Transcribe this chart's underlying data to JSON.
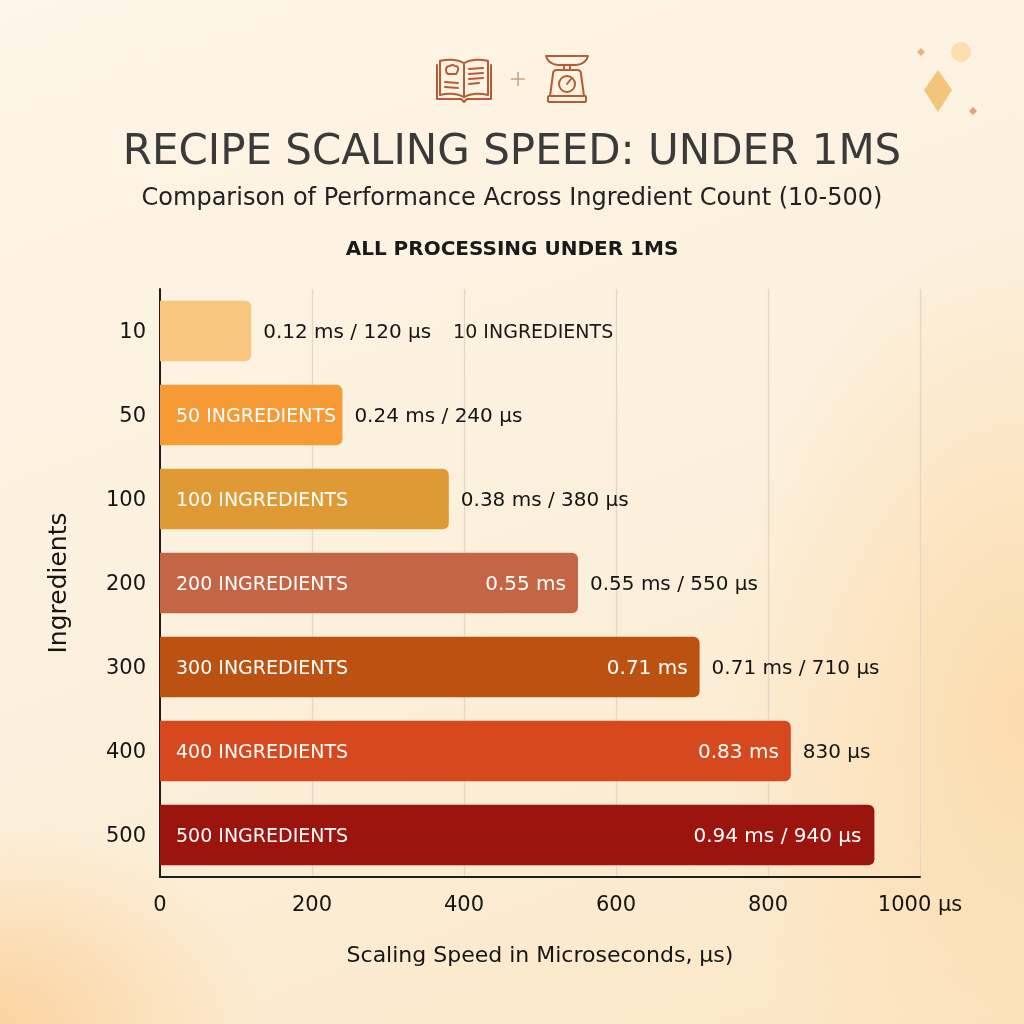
{
  "chart_data": {
    "type": "bar",
    "orientation": "horizontal",
    "title": "RECIPE SCALING SPEED: UNDER 1MS",
    "subtitle": "Comparison of Performance Across Ingredient Count (10-500)",
    "xlabel": "Scaling Speed in Microseconds, µs)",
    "ylabel": "Ingredients",
    "categories": [
      "10",
      "50",
      "100",
      "200",
      "300",
      "400",
      "500"
    ],
    "values": [
      120,
      240,
      380,
      550,
      710,
      830,
      940
    ],
    "colors": [
      "#f8c57f",
      "#f59a35",
      "#e09a35",
      "#c46545",
      "#bb5212",
      "#d6491f",
      "#9c140e"
    ],
    "value_labels": [
      "0.12 ms / 120 µs",
      "0.24 ms / 240 µs",
      "0.38 ms / 380 µs",
      "0.55 ms / 550 µs",
      "0.71 ms / 710 µs",
      "830 µs",
      "0.94 ms / 940 µs"
    ],
    "xlim": [
      0,
      1000
    ],
    "xticks": [
      0,
      200,
      400,
      600,
      800,
      {
        "value": 1000,
        "label": "1000 µs"
      }
    ],
    "grid": "x",
    "annotations": [
      "ALL PROCESSING UNDER 1MS",
      "10 INGREDIENTS",
      "50 INGREDIENTS",
      "100 INGREDIENTS",
      "200 INGREDIENTS",
      "300 INGREDIENTS",
      "400 INGREDIENTS",
      "500 INGREDIENTS",
      {
        "text": "0.55 ms",
        "x": 550,
        "y": "200"
      },
      {
        "text": "0.71 ms",
        "x": 710,
        "y": "300"
      },
      {
        "text": "0.83 ms",
        "x": 830,
        "y": "400"
      }
    ]
  }
}
